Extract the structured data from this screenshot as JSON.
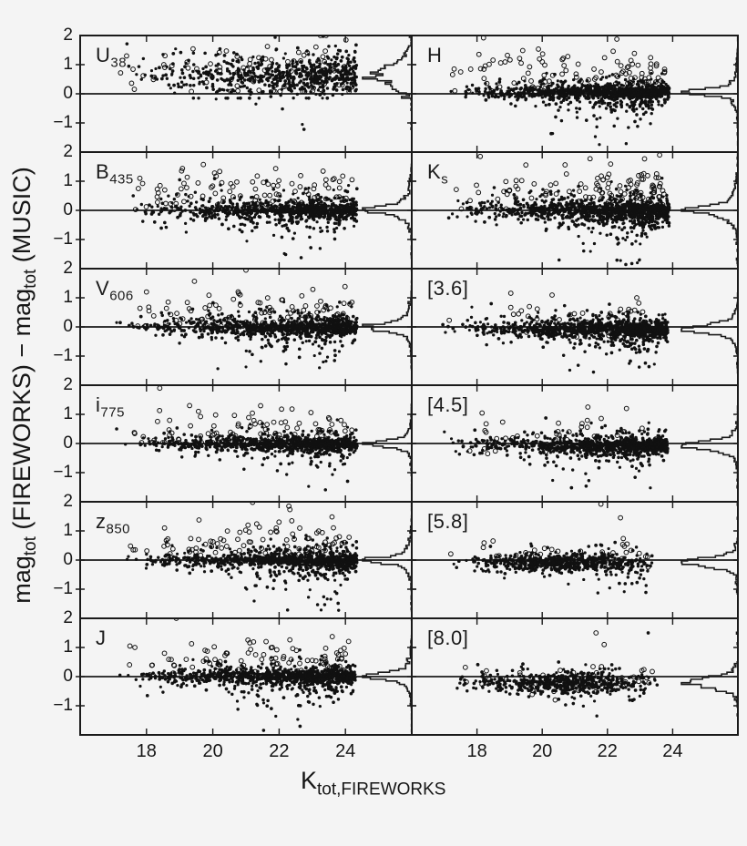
{
  "figure": {
    "background": "#f4f4f4",
    "ink": "#111111",
    "frame_color": "#1a1a1a"
  },
  "chart_data": {
    "type": "scatter",
    "title": "",
    "xlabel": {
      "main": "K",
      "sub": "tot,FIREWORKS"
    },
    "ylabel_parts": [
      {
        "t": "mag",
        "sub": false
      },
      {
        "t": "tot",
        "sub": true
      },
      {
        "t": " (FIREWORKS)  −  mag",
        "sub": false
      },
      {
        "t": "tot",
        "sub": true
      },
      {
        "t": " (MUSIC)",
        "sub": false
      }
    ],
    "x_range": [
      16,
      26
    ],
    "y_range": [
      -2,
      2
    ],
    "x_ticks": [
      18,
      20,
      22,
      24
    ],
    "x_tick_labels": [
      "18",
      "20",
      "22",
      "24"
    ],
    "y_ticks_labeled": [
      2,
      1,
      0,
      -1
    ],
    "y_tick_labels": [
      "2",
      "1",
      "0",
      "−1"
    ],
    "grid": false,
    "legend": null,
    "zero_reference_line": true,
    "marker_styles": {
      "dots": "filled-black-dot",
      "circles": "open-black-circle"
    },
    "histogram": {
      "orientation": "horizontal-from-right-spine",
      "bin_width_mag": 0.06
    },
    "seed": 42,
    "panels": [
      {
        "id": "U38",
        "label_main": "U",
        "label_sub": "38",
        "col": 0,
        "row": 0,
        "dots": {
          "n": 640,
          "x": {
            "min": 17.0,
            "max": 24.35,
            "p": 0.45
          },
          "core": {
            "c": 0.62,
            "s": 0.3,
            "frac": 0.72
          },
          "broad": {
            "c": 0.68,
            "s": 0.52,
            "frac": 0.28,
            "min": -0.15,
            "max": 2.04
          },
          "tail": {
            "frac": 0.0,
            "off": 0,
            "scale": 0.3,
            "min": -1.0,
            "xmin": 20,
            "xmax": 23
          }
        },
        "circles": {
          "n": 82,
          "c": 0.85,
          "s": 0.5,
          "min": 0.08,
          "max": 2.0,
          "x": {
            "min": 17.1,
            "max": 24.2,
            "p": 0.6
          }
        },
        "extra_dots": [
          [
            22.7,
            -1.05
          ],
          [
            22.75,
            -1.22
          ],
          [
            21.3,
            -0.35
          ],
          [
            22.1,
            -0.52
          ],
          [
            20.1,
            -0.18
          ]
        ],
        "extra_circles": [
          [
            17.4,
            1.3
          ],
          [
            17.9,
            0.62
          ]
        ]
      },
      {
        "id": "B435",
        "label_main": "B",
        "label_sub": "435",
        "col": 0,
        "row": 1,
        "dots": {
          "n": 860,
          "x": {
            "min": 17.2,
            "max": 24.35,
            "p": 0.45
          },
          "core": {
            "c": 0.0,
            "s": 0.12,
            "frac": 0.6
          },
          "broad": {
            "c": 0.05,
            "s": 0.3,
            "frac": 0.4,
            "min": -0.75,
            "max": 1.55
          },
          "tail": {
            "frac": 0.075,
            "off": 0.18,
            "scale": 0.38,
            "min": -1.7,
            "xmin": 20.0,
            "xmax": 24.0
          }
        },
        "circles": {
          "n": 112,
          "c": 0.55,
          "s": 0.42,
          "min": 0.03,
          "max": 1.9,
          "x": {
            "min": 17.3,
            "max": 24.2,
            "p": 0.6
          }
        },
        "extra_dots": [
          [
            19.0,
            1.05
          ],
          [
            17.6,
            0.5
          ]
        ],
        "extra_circles": [
          [
            17.8,
            1.1
          ]
        ]
      },
      {
        "id": "V606",
        "label_main": "V",
        "label_sub": "606",
        "col": 0,
        "row": 2,
        "dots": {
          "n": 950,
          "x": {
            "min": 17.0,
            "max": 24.35,
            "p": 0.45
          },
          "core": {
            "c": -0.02,
            "s": 0.11,
            "frac": 0.62
          },
          "broad": {
            "c": 0.02,
            "s": 0.28,
            "frac": 0.38,
            "min": -0.7,
            "max": 1.5
          },
          "tail": {
            "frac": 0.075,
            "off": 0.18,
            "scale": 0.36,
            "min": -1.65,
            "xmin": 20.0,
            "xmax": 24.0
          }
        },
        "circles": {
          "n": 105,
          "c": 0.5,
          "s": 0.4,
          "min": 0.03,
          "max": 1.9,
          "x": {
            "min": 17.2,
            "max": 24.2,
            "p": 0.6
          }
        },
        "extra_dots": [
          [
            17.1,
            0.15
          ]
        ],
        "extra_circles": [
          [
            18.0,
            1.2
          ],
          [
            21.0,
            1.95
          ]
        ]
      },
      {
        "id": "i775",
        "label_main": "i",
        "label_sub": "775",
        "col": 0,
        "row": 3,
        "dots": {
          "n": 950,
          "x": {
            "min": 17.0,
            "max": 24.35,
            "p": 0.45
          },
          "core": {
            "c": -0.02,
            "s": 0.1,
            "frac": 0.64
          },
          "broad": {
            "c": 0.02,
            "s": 0.27,
            "frac": 0.36,
            "min": -0.7,
            "max": 1.45
          },
          "tail": {
            "frac": 0.07,
            "off": 0.18,
            "scale": 0.35,
            "min": -1.6,
            "xmin": 20.2,
            "xmax": 24.1
          }
        },
        "circles": {
          "n": 95,
          "c": 0.45,
          "s": 0.38,
          "min": 0.03,
          "max": 1.7,
          "x": {
            "min": 17.2,
            "max": 24.2,
            "p": 0.6
          }
        },
        "extra_dots": [
          [
            17.1,
            0.5
          ]
        ],
        "extra_circles": [
          [
            18.4,
            1.9
          ],
          [
            19.3,
            1.3
          ]
        ]
      },
      {
        "id": "z850",
        "label_main": "z",
        "label_sub": "850",
        "col": 0,
        "row": 4,
        "dots": {
          "n": 950,
          "x": {
            "min": 17.3,
            "max": 24.35,
            "p": 0.45
          },
          "core": {
            "c": -0.03,
            "s": 0.1,
            "frac": 0.62
          },
          "broad": {
            "c": 0.03,
            "s": 0.29,
            "frac": 0.38,
            "min": -0.7,
            "max": 1.5
          },
          "tail": {
            "frac": 0.085,
            "off": 0.18,
            "scale": 0.38,
            "min": -1.75,
            "xmin": 20.2,
            "xmax": 24.1
          }
        },
        "circles": {
          "n": 105,
          "c": 0.5,
          "s": 0.4,
          "min": 0.03,
          "max": 1.85,
          "x": {
            "min": 17.4,
            "max": 24.2,
            "p": 0.6
          }
        },
        "extra_dots": [
          [
            18.0,
            0.2
          ]
        ],
        "extra_circles": [
          [
            21.2,
            1.98
          ],
          [
            17.6,
            0.35
          ]
        ]
      },
      {
        "id": "J",
        "label_main": "J",
        "label_sub": "",
        "col": 0,
        "row": 5,
        "dots": {
          "n": 1000,
          "x": {
            "min": 17.0,
            "max": 24.3,
            "p": 0.45
          },
          "core": {
            "c": 0.0,
            "s": 0.1,
            "frac": 0.62
          },
          "broad": {
            "c": 0.04,
            "s": 0.28,
            "frac": 0.38,
            "min": -0.7,
            "max": 1.45
          },
          "tail": {
            "frac": 0.085,
            "off": 0.2,
            "scale": 0.4,
            "min": -1.85,
            "xmin": 20.3,
            "xmax": 23.8
          }
        },
        "circles": {
          "n": 112,
          "c": 0.5,
          "s": 0.42,
          "min": 0.05,
          "max": 1.95,
          "x": {
            "min": 17.3,
            "max": 24.1,
            "p": 0.6
          }
        },
        "extra_dots": [
          [
            17.2,
            0.05
          ]
        ],
        "extra_circles": [
          [
            17.5,
            1.05
          ],
          [
            17.65,
            1.0
          ],
          [
            18.9,
            2.0
          ]
        ]
      },
      {
        "id": "H",
        "label_main": "H",
        "label_sub": "",
        "col": 1,
        "row": 0,
        "dots": {
          "n": 1060,
          "x": {
            "min": 17.0,
            "max": 23.9,
            "p": 0.45
          },
          "core": {
            "c": 0.04,
            "s": 0.1,
            "frac": 0.62
          },
          "broad": {
            "c": 0.08,
            "s": 0.24,
            "frac": 0.38,
            "min": -0.6,
            "max": 1.0
          },
          "tail": {
            "frac": 0.09,
            "off": 0.25,
            "scale": 0.42,
            "min": -1.75,
            "xmin": 19.8,
            "xmax": 23.4
          }
        },
        "circles": {
          "n": 125,
          "c": 0.6,
          "s": 0.45,
          "min": 0.1,
          "max": 2.0,
          "x": {
            "min": 17.2,
            "max": 23.8,
            "p": 0.6
          }
        },
        "extra_dots": [],
        "extra_circles": [
          [
            18.2,
            1.92
          ],
          [
            17.3,
            0.85
          ],
          [
            17.5,
            0.75
          ]
        ]
      },
      {
        "id": "Ks",
        "label_main": "K",
        "label_sub": "s",
        "col": 1,
        "row": 1,
        "dots": {
          "n": 1150,
          "x": {
            "min": 17.0,
            "max": 23.9,
            "p": 0.45
          },
          "core": {
            "c": 0.0,
            "s": 0.12,
            "frac": 0.58
          },
          "broad": {
            "c": 0.05,
            "s": 0.3,
            "frac": 0.42,
            "min": -0.85,
            "max": 1.2
          },
          "tail": {
            "frac": 0.11,
            "off": 0.2,
            "scale": 0.45,
            "min": -1.95,
            "xmin": 19.8,
            "xmax": 23.6
          }
        },
        "circles": {
          "n": 125,
          "c": 0.55,
          "s": 0.45,
          "min": 0.05,
          "max": 2.0,
          "x": {
            "min": 17.2,
            "max": 23.8,
            "p": 0.6
          }
        },
        "extra_dots": [],
        "extra_circles": [
          [
            18.1,
            1.85
          ],
          [
            23.6,
            1.9
          ]
        ]
      },
      {
        "id": "IRAC36",
        "label_main": "[3.6]",
        "label_sub": "",
        "col": 1,
        "row": 2,
        "dots": {
          "n": 1060,
          "x": {
            "min": 16.9,
            "max": 23.85,
            "p": 0.45
          },
          "core": {
            "c": -0.07,
            "s": 0.11,
            "frac": 0.6
          },
          "broad": {
            "c": -0.05,
            "s": 0.28,
            "frac": 0.4,
            "min": -0.85,
            "max": 0.9
          },
          "tail": {
            "frac": 0.06,
            "off": 0.25,
            "scale": 0.38,
            "min": -1.6,
            "xmin": 19.8,
            "xmax": 23.5
          }
        },
        "circles": {
          "n": 56,
          "c": 0.2,
          "s": 0.35,
          "min": -0.35,
          "max": 1.25,
          "x": {
            "min": 17.0,
            "max": 23.7,
            "p": 0.6
          }
        },
        "extra_dots": [],
        "extra_circles": [
          [
            22.9,
            1.0
          ]
        ]
      },
      {
        "id": "IRAC45",
        "label_main": "[4.5]",
        "label_sub": "",
        "col": 1,
        "row": 3,
        "dots": {
          "n": 960,
          "x": {
            "min": 16.9,
            "max": 23.85,
            "p": 0.45
          },
          "core": {
            "c": -0.07,
            "s": 0.11,
            "frac": 0.6
          },
          "broad": {
            "c": -0.05,
            "s": 0.27,
            "frac": 0.4,
            "min": -0.85,
            "max": 0.9
          },
          "tail": {
            "frac": 0.06,
            "off": 0.22,
            "scale": 0.36,
            "min": -1.55,
            "xmin": 19.8,
            "xmax": 23.5
          }
        },
        "circles": {
          "n": 56,
          "c": 0.2,
          "s": 0.35,
          "min": -0.35,
          "max": 1.2,
          "x": {
            "min": 17.0,
            "max": 23.7,
            "p": 0.6
          }
        },
        "extra_dots": [
          [
            17.0,
            0.4
          ]
        ],
        "extra_circles": [
          [
            21.4,
            1.25
          ]
        ]
      },
      {
        "id": "IRAC58",
        "label_main": "[5.8]",
        "label_sub": "",
        "col": 1,
        "row": 4,
        "dots": {
          "n": 620,
          "x": {
            "min": 17.0,
            "max": 23.6,
            "tri": true,
            "p": 0.85
          },
          "core": {
            "c": -0.1,
            "s": 0.13,
            "frac": 0.62
          },
          "broad": {
            "c": -0.08,
            "s": 0.22,
            "frac": 0.38,
            "min": -0.75,
            "max": 0.65
          },
          "tail": {
            "frac": 0.05,
            "off": 0.2,
            "scale": 0.3,
            "min": -1.3,
            "xmin": 19.5,
            "xmax": 23.2
          }
        },
        "circles": {
          "n": 38,
          "c": 0.12,
          "s": 0.3,
          "min": -0.35,
          "max": 0.9,
          "x": {
            "min": 17.1,
            "max": 23.4,
            "p": 0.7
          }
        },
        "extra_dots": [],
        "extra_circles": [
          [
            21.8,
            1.92
          ],
          [
            22.4,
            1.45
          ]
        ]
      },
      {
        "id": "IRAC80",
        "label_main": "[8.0]",
        "label_sub": "",
        "col": 1,
        "row": 5,
        "dots": {
          "n": 560,
          "x": {
            "min": 17.0,
            "max": 23.6,
            "tri": true,
            "p": 0.85
          },
          "core": {
            "c": -0.2,
            "s": 0.15,
            "frac": 0.6
          },
          "broad": {
            "c": -0.18,
            "s": 0.26,
            "frac": 0.4,
            "min": -0.9,
            "max": 0.5
          },
          "tail": {
            "frac": 0.05,
            "off": 0.25,
            "scale": 0.33,
            "min": -1.5,
            "xmin": 19.5,
            "xmax": 23.2
          }
        },
        "circles": {
          "n": 46,
          "c": -0.12,
          "s": 0.3,
          "min": -0.8,
          "max": 0.55,
          "x": {
            "min": 17.1,
            "max": 23.4,
            "p": 0.7
          }
        },
        "extra_dots": [
          [
            23.25,
            1.5
          ]
        ],
        "extra_circles": [
          [
            21.65,
            1.5
          ],
          [
            21.9,
            1.1
          ]
        ]
      }
    ]
  }
}
